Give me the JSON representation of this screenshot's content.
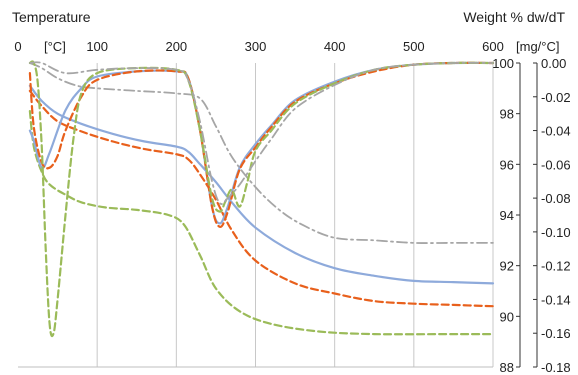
{
  "chart_data": {
    "type": "line",
    "header": {
      "left_title": "Temperature",
      "right_title": "Weight % dw/dT",
      "x_unit": "[°C]",
      "y_right_unit": "[mg/°C]"
    },
    "x_ticks": [
      "0",
      "100",
      "200",
      "300",
      "400",
      "500",
      "600"
    ],
    "y_weight_ticks": [
      "100",
      "98",
      "96",
      "94",
      "92",
      "90",
      "88"
    ],
    "y_dwdt_ticks": [
      "0.00",
      "-0.02",
      "-0.04",
      "-0.06",
      "-0.08",
      "-0.10",
      "-0.12",
      "-0.14",
      "-0.16",
      "-0.18"
    ],
    "xlim": [
      0,
      600
    ],
    "y_weight_lim": [
      88,
      100
    ],
    "y_dwdt_lim": [
      -0.18,
      0
    ],
    "grid": "vertical",
    "series": [
      {
        "axis": "weight",
        "style": "solid",
        "color": "#8EAADB",
        "x": [
          15,
          30,
          50,
          80,
          120,
          160,
          200,
          215,
          230,
          250,
          270,
          300,
          350,
          400,
          450,
          500,
          550,
          600
        ],
        "y": [
          99.1,
          98.5,
          98.0,
          97.6,
          97.2,
          96.9,
          96.7,
          96.5,
          96.0,
          95.3,
          94.5,
          93.5,
          92.5,
          91.9,
          91.6,
          91.4,
          91.35,
          91.3
        ]
      },
      {
        "axis": "weight",
        "style": "dashed",
        "color": "#E8601C",
        "x": [
          15,
          30,
          50,
          80,
          120,
          160,
          200,
          215,
          230,
          250,
          270,
          300,
          350,
          400,
          450,
          500,
          550,
          600
        ],
        "y": [
          98.9,
          98.3,
          97.7,
          97.3,
          96.9,
          96.6,
          96.4,
          96.2,
          95.6,
          94.6,
          93.4,
          92.2,
          91.3,
          90.9,
          90.6,
          90.5,
          90.45,
          90.4
        ]
      },
      {
        "axis": "weight",
        "style": "dashed",
        "color": "#9BBB59",
        "x": [
          15,
          20,
          30,
          40,
          60,
          80,
          110,
          150,
          190,
          210,
          230,
          250,
          280,
          320,
          380,
          450,
          550,
          600
        ],
        "y": [
          98.1,
          96.7,
          95.7,
          95.2,
          94.8,
          94.5,
          94.3,
          94.2,
          94.0,
          93.6,
          92.4,
          91.1,
          90.2,
          89.7,
          89.4,
          89.3,
          89.3,
          89.3
        ]
      },
      {
        "axis": "weight",
        "style": "dashdot",
        "color": "#A6A6A6",
        "x": [
          15,
          30,
          50,
          75,
          100,
          150,
          200,
          230,
          250,
          270,
          300,
          330,
          360,
          400,
          450,
          500,
          550,
          600
        ],
        "y": [
          100.0,
          99.8,
          99.4,
          99.1,
          99.0,
          98.9,
          98.8,
          98.6,
          97.5,
          96.3,
          95.1,
          94.2,
          93.6,
          93.1,
          93.0,
          92.9,
          92.9,
          92.9
        ]
      },
      {
        "axis": "dwdt",
        "style": "solid",
        "color": "#8EAADB",
        "x": [
          15,
          20,
          30,
          40,
          60,
          80,
          100,
          150,
          200,
          215,
          230,
          245,
          255,
          265,
          280,
          300,
          320,
          350,
          400,
          450,
          500,
          550,
          600
        ],
        "y": [
          -0.04,
          -0.046,
          -0.062,
          -0.053,
          -0.028,
          -0.015,
          -0.008,
          -0.005,
          -0.005,
          -0.009,
          -0.04,
          -0.085,
          -0.095,
          -0.085,
          -0.062,
          -0.048,
          -0.037,
          -0.022,
          -0.011,
          -0.004,
          -0.001,
          0.0,
          0.0
        ]
      },
      {
        "axis": "dwdt",
        "style": "dashed",
        "color": "#E8601C",
        "x": [
          15,
          20,
          30,
          40,
          50,
          60,
          80,
          100,
          150,
          200,
          215,
          230,
          245,
          255,
          265,
          280,
          300,
          320,
          350,
          400,
          450,
          500,
          550,
          600
        ],
        "y": [
          -0.006,
          -0.038,
          -0.059,
          -0.062,
          -0.055,
          -0.04,
          -0.02,
          -0.01,
          -0.005,
          -0.005,
          -0.009,
          -0.04,
          -0.085,
          -0.097,
          -0.088,
          -0.063,
          -0.05,
          -0.038,
          -0.023,
          -0.012,
          -0.005,
          -0.001,
          0.0,
          0.0
        ]
      },
      {
        "axis": "dwdt",
        "style": "dashed",
        "color": "#9BBB59",
        "x": [
          15,
          20,
          25,
          30,
          35,
          40,
          45,
          50,
          60,
          70,
          80,
          100,
          150,
          200,
          215,
          230,
          245,
          255,
          262,
          270,
          280,
          290,
          300,
          320,
          350,
          400,
          450,
          500,
          550,
          600
        ],
        "y": [
          0.0,
          0.0,
          -0.012,
          -0.05,
          -0.11,
          -0.155,
          -0.16,
          -0.14,
          -0.09,
          -0.045,
          -0.018,
          -0.006,
          -0.003,
          -0.004,
          -0.01,
          -0.04,
          -0.08,
          -0.088,
          -0.082,
          -0.075,
          -0.085,
          -0.07,
          -0.052,
          -0.04,
          -0.024,
          -0.012,
          -0.004,
          -0.001,
          0.0,
          0.0
        ]
      },
      {
        "axis": "dwdt",
        "style": "dashdot",
        "color": "#A6A6A6",
        "x": [
          15,
          30,
          60,
          100,
          150,
          200,
          215,
          230,
          245,
          255,
          265,
          280,
          300,
          320,
          350,
          400,
          450,
          500,
          550,
          600
        ],
        "y": [
          0.0,
          0.0,
          -0.006,
          -0.004,
          -0.003,
          -0.004,
          -0.01,
          -0.035,
          -0.07,
          -0.083,
          -0.08,
          -0.072,
          -0.058,
          -0.045,
          -0.027,
          -0.013,
          -0.004,
          -0.001,
          0.0,
          0.0
        ]
      }
    ]
  }
}
